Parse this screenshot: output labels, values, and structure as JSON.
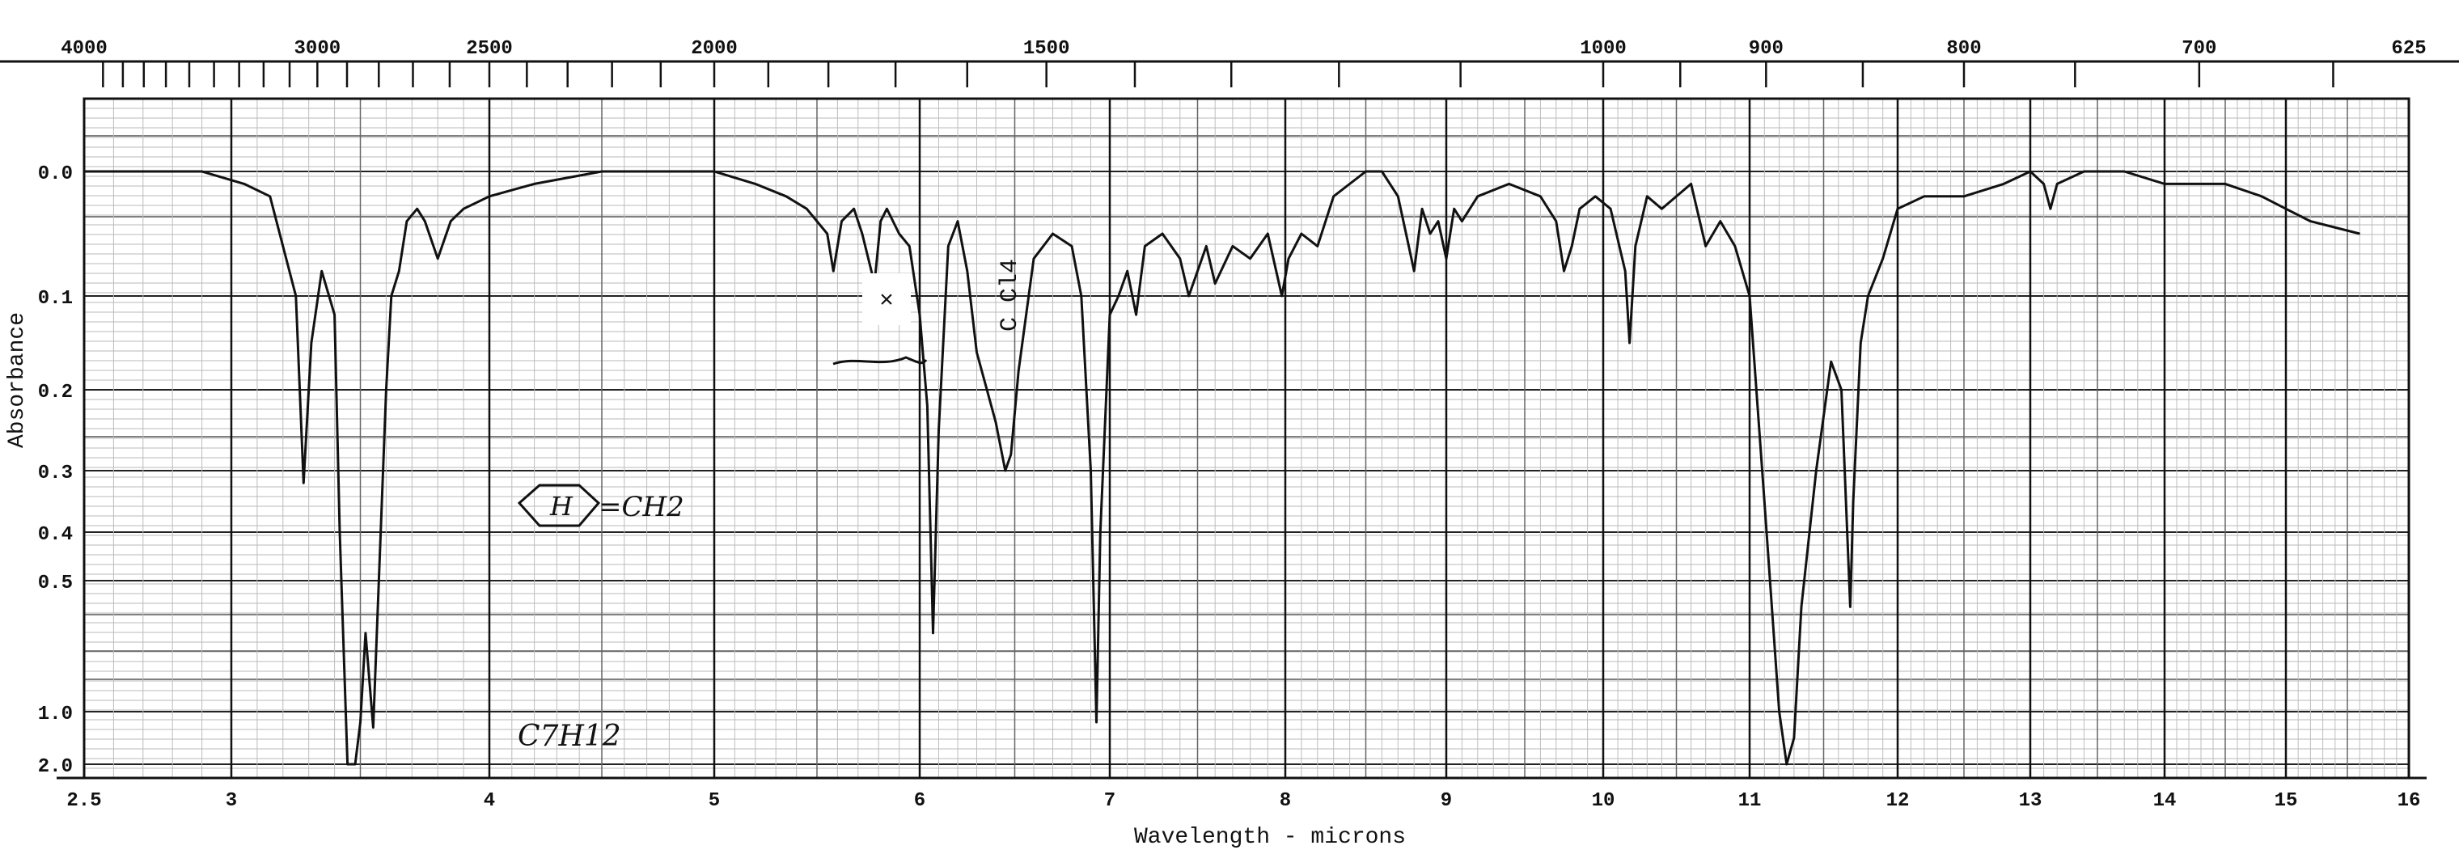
{
  "chart_data": {
    "type": "line",
    "title": "",
    "xlabel": "Wavelength - microns",
    "ylabel": "Absorbance",
    "x_unit": "microns",
    "xlim": [
      2.5,
      16
    ],
    "y_scale": "absorbance",
    "grid": true,
    "top_axis_labels": [
      "4000",
      "3000",
      "2500",
      "2000",
      "1500",
      "1000",
      "900",
      "800",
      "700",
      "625"
    ],
    "bottom_axis_labels": [
      "2.5",
      "3",
      "4",
      "5",
      "6",
      "7",
      "8",
      "9",
      "10",
      "11",
      "12",
      "13",
      "14",
      "15",
      "16"
    ],
    "y_tick_labels": [
      "0.0",
      "0.1",
      "0.2",
      "0.3",
      "0.4",
      "0.5",
      "1.0",
      "2.0"
    ],
    "annotations": {
      "solvent": "C Cl4",
      "x_mark": "×",
      "structure_label": "=CH2",
      "ring_label": "H",
      "formula": "C7H12"
    },
    "series": [
      {
        "x": [
          2.5,
          2.7,
          2.9,
          3.05,
          3.15,
          3.25,
          3.28,
          3.31,
          3.35,
          3.4,
          3.42,
          3.45,
          3.48,
          3.5,
          3.52,
          3.55,
          3.6,
          3.62,
          3.65,
          3.68,
          3.72,
          3.75,
          3.8,
          3.85,
          3.9,
          4.0,
          4.2,
          4.5,
          4.8,
          5.0,
          5.2,
          5.35,
          5.45,
          5.55,
          5.58,
          5.62,
          5.68,
          5.72,
          5.78,
          5.81,
          5.84,
          5.9,
          5.95,
          6.0,
          6.04,
          6.07,
          6.1,
          6.15,
          6.2,
          6.25,
          6.3,
          6.4,
          6.45,
          6.48,
          6.52,
          6.6,
          6.7,
          6.8,
          6.85,
          6.9,
          6.93,
          6.95,
          7.0,
          7.05,
          7.1,
          7.15,
          7.2,
          7.3,
          7.4,
          7.45,
          7.5,
          7.55,
          7.6,
          7.7,
          7.8,
          7.9,
          7.98,
          8.02,
          8.1,
          8.2,
          8.3,
          8.5,
          8.6,
          8.7,
          8.75,
          8.8,
          8.85,
          8.9,
          8.95,
          9.0,
          9.05,
          9.1,
          9.2,
          9.4,
          9.6,
          9.7,
          9.75,
          9.8,
          9.85,
          9.95,
          10.05,
          10.15,
          10.18,
          10.22,
          10.3,
          10.4,
          10.6,
          10.7,
          10.8,
          10.9,
          11.0,
          11.1,
          11.2,
          11.25,
          11.3,
          11.35,
          11.45,
          11.55,
          11.62,
          11.68,
          11.7,
          11.75,
          11.8,
          11.9,
          12.0,
          12.2,
          12.5,
          12.8,
          13.0,
          13.1,
          13.15,
          13.2,
          13.4,
          13.7,
          14.0,
          14.5,
          14.8,
          15.0,
          15.2,
          15.6
        ],
        "y": [
          0.0,
          0.0,
          0.0,
          0.01,
          0.02,
          0.1,
          0.32,
          0.15,
          0.08,
          0.12,
          0.4,
          2.0,
          2.0,
          1.2,
          0.7,
          1.3,
          0.2,
          0.1,
          0.08,
          0.04,
          0.03,
          0.04,
          0.07,
          0.04,
          0.03,
          0.02,
          0.01,
          0.0,
          0.0,
          0.0,
          0.01,
          0.02,
          0.03,
          0.05,
          0.08,
          0.04,
          0.03,
          0.05,
          0.09,
          0.04,
          0.03,
          0.05,
          0.06,
          0.12,
          0.22,
          0.7,
          0.25,
          0.06,
          0.04,
          0.08,
          0.16,
          0.24,
          0.3,
          0.28,
          0.18,
          0.07,
          0.05,
          0.06,
          0.1,
          0.3,
          1.2,
          0.4,
          0.12,
          0.1,
          0.08,
          0.12,
          0.06,
          0.05,
          0.07,
          0.1,
          0.08,
          0.06,
          0.09,
          0.06,
          0.07,
          0.05,
          0.1,
          0.07,
          0.05,
          0.06,
          0.02,
          0.0,
          0.0,
          0.02,
          0.05,
          0.08,
          0.03,
          0.05,
          0.04,
          0.07,
          0.03,
          0.04,
          0.02,
          0.01,
          0.02,
          0.04,
          0.08,
          0.06,
          0.03,
          0.02,
          0.03,
          0.08,
          0.15,
          0.06,
          0.02,
          0.03,
          0.01,
          0.06,
          0.04,
          0.06,
          0.1,
          0.35,
          1.0,
          2.0,
          1.5,
          0.6,
          0.3,
          0.17,
          0.2,
          0.6,
          0.35,
          0.15,
          0.1,
          0.07,
          0.03,
          0.02,
          0.02,
          0.01,
          0.0,
          0.01,
          0.03,
          0.01,
          0.0,
          0.0,
          0.01,
          0.01,
          0.02,
          0.03,
          0.04,
          0.05
        ]
      }
    ]
  }
}
